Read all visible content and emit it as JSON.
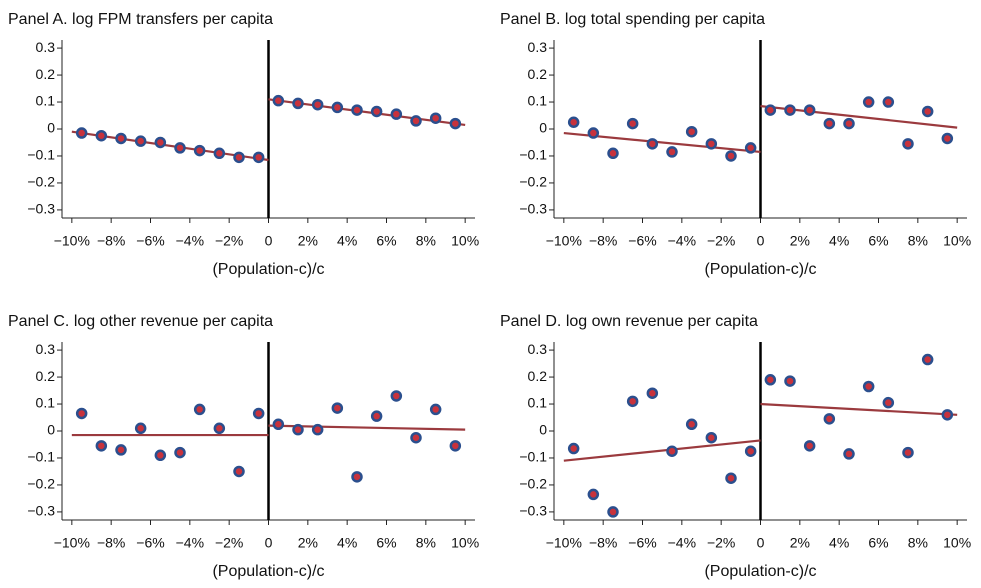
{
  "chart_data": [
    {
      "type": "scatter",
      "title": "Panel A. log FPM transfers per capita",
      "x_label": "(Population-c)/c",
      "x": [
        -9.5,
        -8.5,
        -7.5,
        -6.5,
        -5.5,
        -4.5,
        -3.5,
        -2.5,
        -1.5,
        -0.5,
        0.5,
        1.5,
        2.5,
        3.5,
        4.5,
        5.5,
        6.5,
        7.5,
        8.5,
        9.5
      ],
      "values": [
        -0.015,
        -0.025,
        -0.035,
        -0.045,
        -0.05,
        -0.07,
        -0.08,
        -0.09,
        -0.105,
        -0.105,
        0.105,
        0.095,
        0.09,
        0.08,
        0.07,
        0.065,
        0.055,
        0.03,
        0.04,
        0.02
      ],
      "fit_lines": [
        {
          "x": [
            -10,
            0
          ],
          "values": [
            -0.01,
            -0.115
          ]
        },
        {
          "x": [
            0,
            10
          ],
          "values": [
            0.11,
            0.015
          ]
        }
      ],
      "cutoff": 0,
      "point_color": "#c8323c",
      "point_edge": "#2b4f8e",
      "line_color": "#9b3a3e",
      "xlim": [
        -10.5,
        10.5
      ],
      "ylim": [
        -0.33,
        0.33
      ],
      "xticks": [
        {
          "value": -10,
          "label": "−10%"
        },
        {
          "value": -8,
          "label": "−8%"
        },
        {
          "value": -6,
          "label": "−6%"
        },
        {
          "value": -4,
          "label": "−4%"
        },
        {
          "value": -2,
          "label": "−2%"
        },
        0,
        {
          "value": 2,
          "label": "2%"
        },
        {
          "value": 4,
          "label": "4%"
        },
        {
          "value": 6,
          "label": "6%"
        },
        {
          "value": 8,
          "label": "8%"
        },
        {
          "value": 10,
          "label": "10%"
        }
      ],
      "yticks": [
        0.3,
        0.2,
        0.1,
        0,
        {
          "value": -0.1,
          "label": "−0.1"
        },
        {
          "value": -0.2,
          "label": "−0.2"
        },
        {
          "value": -0.3,
          "label": "−0.3"
        }
      ]
    },
    {
      "type": "scatter",
      "title": "Panel B. log total spending per capita",
      "x_label": "(Population-c)/c",
      "x": [
        -9.5,
        -8.5,
        -7.5,
        -6.5,
        -5.5,
        -4.5,
        -3.5,
        -2.5,
        -1.5,
        -0.5,
        0.5,
        1.5,
        2.5,
        3.5,
        4.5,
        5.5,
        6.5,
        7.5,
        8.5,
        9.5
      ],
      "values": [
        0.025,
        -0.015,
        -0.09,
        0.02,
        -0.055,
        -0.085,
        -0.01,
        -0.055,
        -0.1,
        -0.07,
        0.07,
        0.07,
        0.07,
        0.02,
        0.02,
        0.1,
        0.1,
        -0.055,
        0.065,
        -0.035
      ],
      "fit_lines": [
        {
          "x": [
            -10,
            0
          ],
          "values": [
            -0.015,
            -0.085
          ]
        },
        {
          "x": [
            0,
            10
          ],
          "values": [
            0.085,
            0.005
          ]
        }
      ],
      "cutoff": 0,
      "point_color": "#c8323c",
      "point_edge": "#2b4f8e",
      "line_color": "#9b3a3e",
      "xlim": [
        -10.5,
        10.5
      ],
      "ylim": [
        -0.33,
        0.33
      ],
      "xticks": [
        {
          "value": -10,
          "label": "−10%"
        },
        {
          "value": -8,
          "label": "−8%"
        },
        {
          "value": -6,
          "label": "−6%"
        },
        {
          "value": -4,
          "label": "−4%"
        },
        {
          "value": -2,
          "label": "−2%"
        },
        0,
        {
          "value": 2,
          "label": "2%"
        },
        {
          "value": 4,
          "label": "4%"
        },
        {
          "value": 6,
          "label": "6%"
        },
        {
          "value": 8,
          "label": "8%"
        },
        {
          "value": 10,
          "label": "10%"
        }
      ],
      "yticks": [
        0.3,
        0.2,
        0.1,
        0,
        {
          "value": -0.1,
          "label": "−0.1"
        },
        {
          "value": -0.2,
          "label": "−0.2"
        },
        {
          "value": -0.3,
          "label": "−0.3"
        }
      ]
    },
    {
      "type": "scatter",
      "title": "Panel C. log other revenue per capita",
      "x_label": "(Population-c)/c",
      "x": [
        -9.5,
        -8.5,
        -7.5,
        -6.5,
        -5.5,
        -4.5,
        -3.5,
        -2.5,
        -1.5,
        -0.5,
        0.5,
        1.5,
        2.5,
        3.5,
        4.5,
        5.5,
        6.5,
        7.5,
        8.5,
        9.5
      ],
      "values": [
        0.065,
        -0.055,
        -0.07,
        0.01,
        -0.09,
        -0.08,
        0.08,
        0.01,
        -0.15,
        0.065,
        0.025,
        0.005,
        0.005,
        0.085,
        -0.17,
        0.055,
        0.13,
        -0.025,
        0.08,
        -0.055
      ],
      "fit_lines": [
        {
          "x": [
            -10,
            0
          ],
          "values": [
            -0.015,
            -0.015
          ]
        },
        {
          "x": [
            0,
            10
          ],
          "values": [
            0.02,
            0.005
          ]
        }
      ],
      "cutoff": 0,
      "point_color": "#c8323c",
      "point_edge": "#2b4f8e",
      "line_color": "#9b3a3e",
      "xlim": [
        -10.5,
        10.5
      ],
      "ylim": [
        -0.33,
        0.33
      ],
      "xticks": [
        {
          "value": -10,
          "label": "−10%"
        },
        {
          "value": -8,
          "label": "−8%"
        },
        {
          "value": -6,
          "label": "−6%"
        },
        {
          "value": -4,
          "label": "−4%"
        },
        {
          "value": -2,
          "label": "−2%"
        },
        0,
        {
          "value": 2,
          "label": "2%"
        },
        {
          "value": 4,
          "label": "4%"
        },
        {
          "value": 6,
          "label": "6%"
        },
        {
          "value": 8,
          "label": "8%"
        },
        {
          "value": 10,
          "label": "10%"
        }
      ],
      "yticks": [
        0.3,
        0.2,
        0.1,
        0,
        {
          "value": -0.1,
          "label": "−0.1"
        },
        {
          "value": -0.2,
          "label": "−0.2"
        },
        {
          "value": -0.3,
          "label": "−0.3"
        }
      ]
    },
    {
      "type": "scatter",
      "title": "Panel D. log own revenue per capita",
      "x_label": "(Population-c)/c",
      "x": [
        -9.5,
        -8.5,
        -7.5,
        -6.5,
        -5.5,
        -4.5,
        -3.5,
        -2.5,
        -1.5,
        -0.5,
        0.5,
        1.5,
        2.5,
        3.5,
        4.5,
        5.5,
        6.5,
        7.5,
        8.5,
        9.5
      ],
      "values": [
        -0.065,
        -0.235,
        -0.3,
        0.11,
        0.14,
        -0.075,
        0.025,
        -0.025,
        -0.175,
        -0.075,
        0.19,
        0.185,
        -0.055,
        0.045,
        -0.085,
        0.165,
        0.105,
        -0.08,
        0.265,
        0.06
      ],
      "fit_lines": [
        {
          "x": [
            -10,
            0
          ],
          "values": [
            -0.11,
            -0.035
          ]
        },
        {
          "x": [
            0,
            10
          ],
          "values": [
            0.1,
            0.06
          ]
        }
      ],
      "cutoff": 0,
      "point_color": "#c8323c",
      "point_edge": "#2b4f8e",
      "line_color": "#9b3a3e",
      "xlim": [
        -10.5,
        10.5
      ],
      "ylim": [
        -0.33,
        0.33
      ],
      "xticks": [
        {
          "value": -10,
          "label": "−10%"
        },
        {
          "value": -8,
          "label": "−8%"
        },
        {
          "value": -6,
          "label": "−6%"
        },
        {
          "value": -4,
          "label": "−4%"
        },
        {
          "value": -2,
          "label": "−2%"
        },
        0,
        {
          "value": 2,
          "label": "2%"
        },
        {
          "value": 4,
          "label": "4%"
        },
        {
          "value": 6,
          "label": "6%"
        },
        {
          "value": 8,
          "label": "8%"
        },
        {
          "value": 10,
          "label": "10%"
        }
      ],
      "yticks": [
        0.3,
        0.2,
        0.1,
        0,
        {
          "value": -0.1,
          "label": "−0.1"
        },
        {
          "value": -0.2,
          "label": "−0.2"
        },
        {
          "value": -0.3,
          "label": "−0.3"
        }
      ]
    }
  ]
}
